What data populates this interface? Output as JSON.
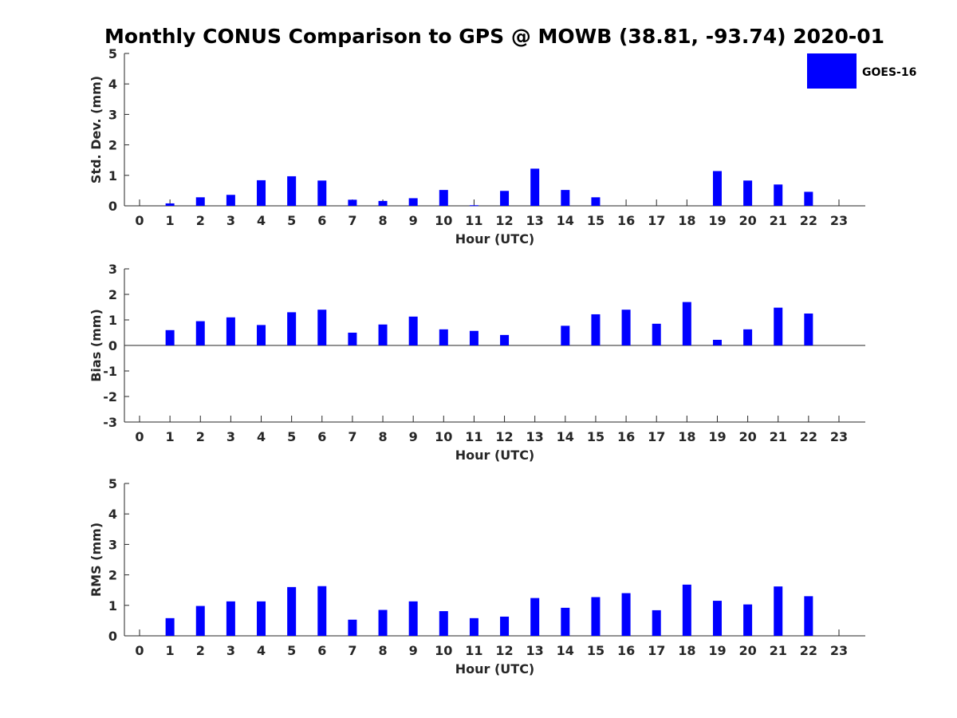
{
  "chart_data": {
    "title": "Monthly CONUS Comparison to GPS @ MOWB (38.81, -93.74) 2020-01",
    "bar_color": "#0000ff",
    "legend": {
      "label": "GOES-16",
      "position": "top-right"
    },
    "categories": [
      "0",
      "1",
      "2",
      "3",
      "4",
      "5",
      "6",
      "7",
      "8",
      "9",
      "10",
      "11",
      "12",
      "13",
      "14",
      "15",
      "16",
      "17",
      "18",
      "19",
      "20",
      "21",
      "22",
      "23"
    ],
    "panels": [
      {
        "type": "bar",
        "xlabel": "Hour (UTC)",
        "ylabel": "Std. Dev. (mm)",
        "ylim": [
          0,
          5
        ],
        "yticks": [
          "0",
          "1",
          "2",
          "3",
          "4",
          "5"
        ],
        "series": [
          {
            "name": "GOES-16",
            "values": [
              null,
              0.08,
              0.28,
              0.36,
              0.84,
              0.97,
              0.83,
              0.2,
              0.16,
              0.25,
              0.52,
              0.02,
              0.49,
              1.22,
              0.52,
              0.28,
              null,
              null,
              null,
              1.14,
              0.83,
              0.7,
              0.46,
              null
            ]
          }
        ]
      },
      {
        "type": "bar",
        "xlabel": "Hour (UTC)",
        "ylabel": "Bias (mm)",
        "ylim": [
          -3,
          3
        ],
        "yticks": [
          "-3",
          "-2",
          "-1",
          "0",
          "1",
          "2",
          "3"
        ],
        "series": [
          {
            "name": "GOES-16",
            "values": [
              null,
              0.6,
              0.95,
              1.1,
              0.8,
              1.3,
              1.4,
              0.5,
              0.82,
              1.13,
              0.63,
              0.57,
              0.41,
              null,
              0.77,
              1.22,
              1.4,
              0.85,
              1.7,
              0.22,
              0.63,
              1.48,
              1.25,
              null
            ]
          }
        ]
      },
      {
        "type": "bar",
        "xlabel": "Hour (UTC)",
        "ylabel": "RMS (mm)",
        "ylim": [
          0,
          5
        ],
        "yticks": [
          "0",
          "1",
          "2",
          "3",
          "4",
          "5"
        ],
        "series": [
          {
            "name": "GOES-16",
            "values": [
              null,
              0.58,
              0.98,
              1.13,
              1.13,
              1.6,
              1.63,
              0.53,
              0.85,
              1.13,
              0.81,
              0.58,
              0.63,
              1.24,
              0.92,
              1.27,
              1.4,
              0.84,
              1.68,
              1.15,
              1.03,
              1.62,
              1.3,
              null
            ]
          }
        ]
      }
    ]
  }
}
